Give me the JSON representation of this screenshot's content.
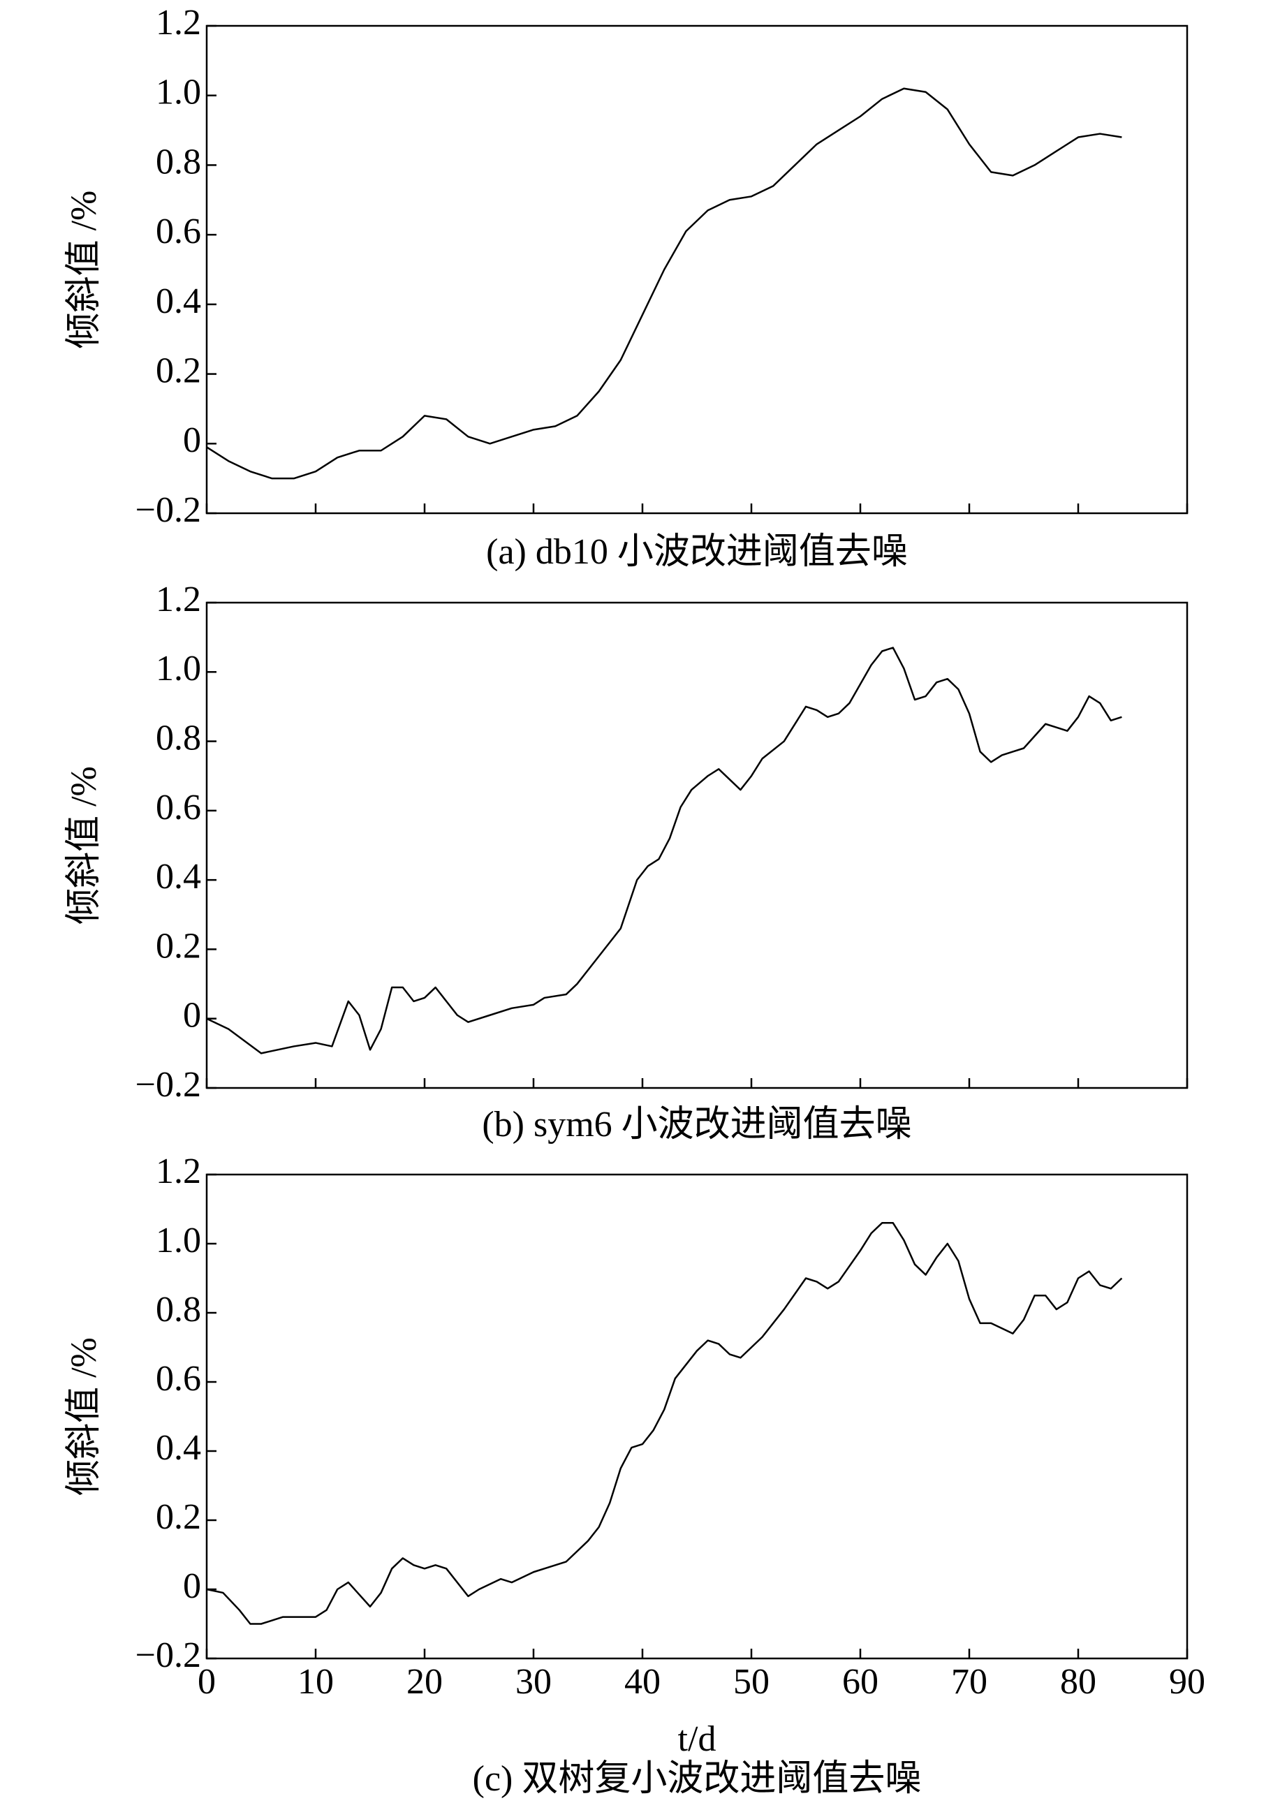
{
  "chart_data": [
    {
      "type": "line",
      "caption": "(a) db10 小波改进阈值去噪",
      "y_label": "倾斜值 /%",
      "color": "#000000",
      "x": [
        0,
        2,
        4,
        6,
        8,
        10,
        12,
        14,
        16,
        18,
        20,
        22,
        24,
        26,
        28,
        30,
        32,
        34,
        36,
        38,
        40,
        42,
        44,
        46,
        48,
        50,
        52,
        54,
        56,
        58,
        60,
        62,
        64,
        66,
        68,
        70,
        72,
        74,
        76,
        78,
        80,
        82,
        84
      ],
      "values": [
        -0.01,
        -0.05,
        -0.08,
        -0.1,
        -0.1,
        -0.08,
        -0.04,
        -0.02,
        -0.02,
        0.02,
        0.08,
        0.07,
        0.02,
        0,
        0.02,
        0.04,
        0.05,
        0.08,
        0.15,
        0.24,
        0.37,
        0.5,
        0.61,
        0.67,
        0.7,
        0.71,
        0.74,
        0.8,
        0.86,
        0.9,
        0.94,
        0.99,
        1.02,
        1.01,
        0.96,
        0.86,
        0.78,
        0.77,
        0.8,
        0.84,
        0.88,
        0.89,
        0.88
      ],
      "ylim": [
        -0.2,
        1.2
      ],
      "yticks": [
        {
          "value": -0.2,
          "label": "−0.2"
        },
        0,
        0.2,
        0.4,
        0.6,
        0.8,
        {
          "value": 1,
          "label": "1.0"
        },
        1.2
      ]
    },
    {
      "type": "line",
      "caption": "(b) sym6 小波改进阈值去噪",
      "y_label": "倾斜值 /%",
      "color": "#000000",
      "x": [
        0,
        2,
        5,
        8,
        10,
        11.5,
        13,
        14,
        15,
        16,
        17,
        18,
        19,
        20,
        21,
        22,
        23,
        24,
        26,
        28,
        30,
        31,
        33,
        34,
        36,
        38,
        39.5,
        40.5,
        41.5,
        42.5,
        43.5,
        44.5,
        46,
        47,
        49,
        50,
        51,
        53,
        55,
        56,
        57,
        58,
        59,
        61,
        62,
        63,
        64,
        65,
        66,
        67,
        68,
        69,
        70,
        71,
        72,
        73,
        74,
        75,
        77,
        78,
        79,
        80,
        81,
        82,
        83,
        84
      ],
      "values": [
        0,
        -0.03,
        -0.1,
        -0.08,
        -0.07,
        -0.08,
        0.05,
        0.01,
        -0.09,
        -0.03,
        0.09,
        0.09,
        0.05,
        0.06,
        0.09,
        0.05,
        0.01,
        -0.01,
        0.01,
        0.03,
        0.04,
        0.06,
        0.07,
        0.1,
        0.18,
        0.26,
        0.4,
        0.44,
        0.46,
        0.52,
        0.61,
        0.66,
        0.7,
        0.72,
        0.66,
        0.7,
        0.75,
        0.8,
        0.9,
        0.89,
        0.87,
        0.88,
        0.91,
        1.02,
        1.06,
        1.07,
        1.01,
        0.92,
        0.93,
        0.97,
        0.98,
        0.95,
        0.88,
        0.77,
        0.74,
        0.76,
        0.77,
        0.78,
        0.85,
        0.84,
        0.83,
        0.87,
        0.93,
        0.91,
        0.86,
        0.87
      ],
      "ylim": [
        -0.2,
        1.2
      ],
      "yticks": [
        {
          "value": -0.2,
          "label": "−0.2"
        },
        0,
        0.2,
        0.4,
        0.6,
        0.8,
        {
          "value": 1,
          "label": "1.0"
        },
        1.2
      ]
    },
    {
      "type": "line",
      "caption": "(c) 双树复小波改进阈值去噪",
      "y_label": "倾斜值 /%",
      "x_label": "t/d",
      "color": "#000000",
      "x": [
        0,
        1.5,
        3,
        4,
        5,
        7,
        9,
        10,
        11,
        12,
        13,
        15,
        16,
        17,
        18,
        19,
        20,
        21,
        22,
        24,
        25,
        27,
        28,
        30,
        31,
        33,
        35,
        36,
        37,
        38,
        39,
        40,
        41,
        42,
        43,
        45,
        46,
        47,
        48,
        49,
        51,
        53,
        55,
        56,
        57,
        58,
        60,
        61,
        62,
        63,
        64,
        65,
        66,
        67,
        68,
        69,
        70,
        71,
        72,
        74,
        75,
        76,
        77,
        78,
        79,
        80,
        81,
        82,
        83,
        84
      ],
      "values": [
        0,
        -0.01,
        -0.06,
        -0.1,
        -0.1,
        -0.08,
        -0.08,
        -0.08,
        -0.06,
        0,
        0.02,
        -0.05,
        -0.01,
        0.06,
        0.09,
        0.07,
        0.06,
        0.07,
        0.06,
        -0.02,
        0,
        0.03,
        0.02,
        0.05,
        0.06,
        0.08,
        0.14,
        0.18,
        0.25,
        0.35,
        0.41,
        0.42,
        0.46,
        0.52,
        0.61,
        0.69,
        0.72,
        0.71,
        0.68,
        0.67,
        0.73,
        0.81,
        0.9,
        0.89,
        0.87,
        0.89,
        0.98,
        1.03,
        1.06,
        1.06,
        1.01,
        0.94,
        0.91,
        0.96,
        1,
        0.95,
        0.84,
        0.77,
        0.77,
        0.74,
        0.78,
        0.85,
        0.85,
        0.81,
        0.83,
        0.9,
        0.92,
        0.88,
        0.87,
        0.9
      ],
      "xlim": [
        0,
        90
      ],
      "xticks": [
        0,
        10,
        20,
        30,
        40,
        50,
        60,
        70,
        80,
        90
      ],
      "ylim": [
        -0.2,
        1.2
      ],
      "yticks": [
        {
          "value": -0.2,
          "label": "−0.2"
        },
        0,
        0.2,
        0.4,
        0.6,
        0.8,
        {
          "value": 1,
          "label": "1.0"
        },
        1.2
      ]
    }
  ]
}
